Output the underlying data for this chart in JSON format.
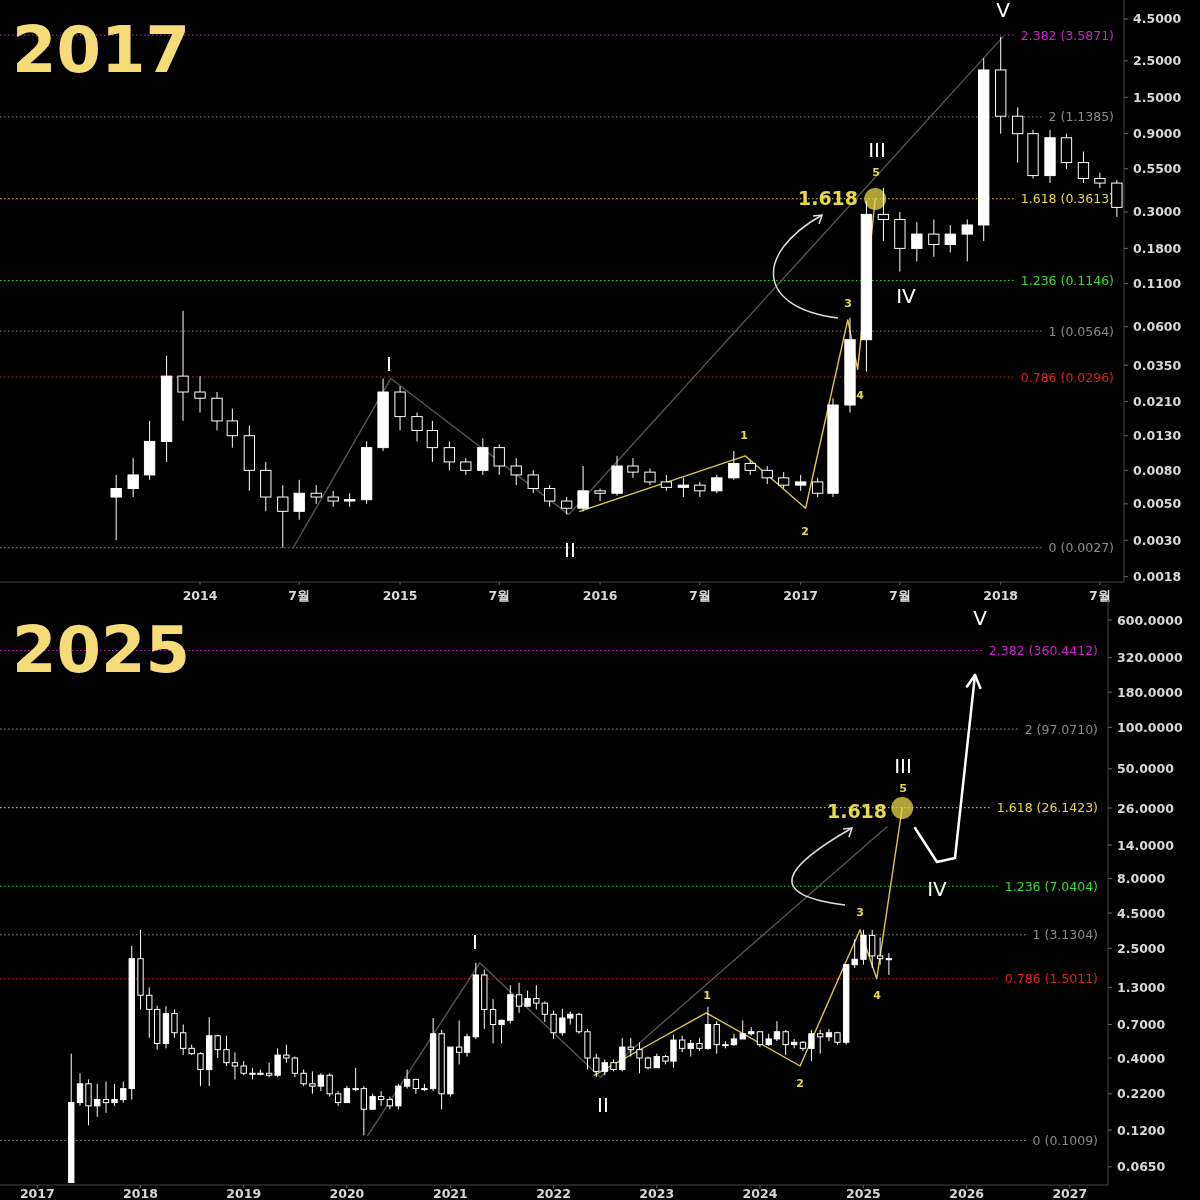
{
  "chart_data": [
    {
      "type": "candlestick",
      "title": "2017",
      "xlim": [
        "2013-01-01",
        "2018-08-14"
      ],
      "ylim": [
        0.00167,
        5.87
      ],
      "log": true,
      "xticks": [
        {
          "value": "2014-01-01",
          "label": "2014"
        },
        {
          "value": "2014-07-01",
          "label": "7월"
        },
        {
          "value": "2015-01-01",
          "label": "2015"
        },
        {
          "value": "2015-07-01",
          "label": "7월"
        },
        {
          "value": "2016-01-01",
          "label": "2016"
        },
        {
          "value": "2016-07-01",
          "label": "7월"
        },
        {
          "value": "2017-01-01",
          "label": "2017"
        },
        {
          "value": "2017-07-01",
          "label": "7월"
        },
        {
          "value": "2018-01-01",
          "label": "2018"
        },
        {
          "value": "2018-07-01",
          "label": "7월"
        }
      ],
      "yticks": [
        {
          "value": 4.5,
          "label": "4.5000"
        },
        {
          "value": 2.5,
          "label": "2.5000"
        },
        {
          "value": 1.5,
          "label": "1.5000"
        },
        {
          "value": 0.9,
          "label": "0.9000"
        },
        {
          "value": 0.55,
          "label": "0.5500"
        },
        {
          "value": 0.3,
          "label": "0.3000"
        },
        {
          "value": 0.18,
          "label": "0.1800"
        },
        {
          "value": 0.11,
          "label": "0.1100"
        },
        {
          "value": 0.06,
          "label": "0.0600"
        },
        {
          "value": 0.035,
          "label": "0.0350"
        },
        {
          "value": 0.021,
          "label": "0.0210"
        },
        {
          "value": 0.013,
          "label": "0.0130"
        },
        {
          "value": 0.008,
          "label": "0.0080"
        },
        {
          "value": 0.005,
          "label": "0.0050"
        },
        {
          "value": 0.003,
          "label": "0.0030"
        },
        {
          "value": 0.0018,
          "label": "0.0018"
        }
      ],
      "series": [
        {
          "type": "line",
          "color": "#555555",
          "x": [
            "2014-06-20",
            "2014-12-15",
            "2015-11-05",
            "2018-01-05"
          ],
          "values": [
            0.0027,
            0.029,
            0.0043,
            3.5
          ]
        },
        {
          "type": "line",
          "color": "#d8c84a",
          "x": [
            "2015-11-25",
            "2016-09-22",
            "2017-01-10",
            "2017-03-28",
            "2017-04-15",
            "2017-05-17"
          ],
          "values": [
            0.0045,
            0.0098,
            0.0047,
            0.066,
            0.033,
            0.36
          ]
        },
        {
          "type": "scatter",
          "color": "#e6d84a",
          "x": [
            "2017-05-17"
          ],
          "values": [
            0.36
          ]
        }
      ],
      "x": [
        "2013-08",
        "2013-09",
        "2013-10",
        "2013-11",
        "2013-12",
        "2014-01",
        "2014-02",
        "2014-03",
        "2014-04",
        "2014-05",
        "2014-06",
        "2014-07",
        "2014-08",
        "2014-09",
        "2014-10",
        "2014-11",
        "2014-12",
        "2015-01",
        "2015-02",
        "2015-03",
        "2015-04",
        "2015-05",
        "2015-06",
        "2015-07",
        "2015-08",
        "2015-09",
        "2015-10",
        "2015-11",
        "2015-12",
        "2016-01",
        "2016-02",
        "2016-03",
        "2016-04",
        "2016-05",
        "2016-06",
        "2016-07",
        "2016-08",
        "2016-09",
        "2016-10",
        "2016-11",
        "2016-12",
        "2017-01",
        "2017-02",
        "2017-03",
        "2017-04",
        "2017-05",
        "2017-06",
        "2017-07",
        "2017-08",
        "2017-09",
        "2017-10",
        "2017-11",
        "2017-12",
        "2018-01",
        "2018-02",
        "2018-03",
        "2018-04",
        "2018-05",
        "2018-06",
        "2018-07",
        "2018-08"
      ],
      "ohlc": [
        [
          0.0055,
          0.0075,
          0.003,
          0.0062
        ],
        [
          0.0062,
          0.0095,
          0.0055,
          0.0075
        ],
        [
          0.0075,
          0.016,
          0.007,
          0.012
        ],
        [
          0.012,
          0.04,
          0.009,
          0.03
        ],
        [
          0.03,
          0.075,
          0.016,
          0.024
        ],
        [
          0.024,
          0.03,
          0.018,
          0.022
        ],
        [
          0.022,
          0.024,
          0.014,
          0.016
        ],
        [
          0.016,
          0.019,
          0.011,
          0.013
        ],
        [
          0.013,
          0.015,
          0.006,
          0.008
        ],
        [
          0.008,
          0.009,
          0.0045,
          0.0055
        ],
        [
          0.0055,
          0.0065,
          0.0027,
          0.0045
        ],
        [
          0.0045,
          0.007,
          0.004,
          0.0058
        ],
        [
          0.0058,
          0.0065,
          0.005,
          0.0055
        ],
        [
          0.0055,
          0.006,
          0.0048,
          0.0052
        ],
        [
          0.0052,
          0.0058,
          0.0048,
          0.0053
        ],
        [
          0.0053,
          0.012,
          0.005,
          0.011
        ],
        [
          0.011,
          0.029,
          0.0105,
          0.024
        ],
        [
          0.024,
          0.026,
          0.014,
          0.017
        ],
        [
          0.017,
          0.018,
          0.012,
          0.014
        ],
        [
          0.014,
          0.016,
          0.009,
          0.011
        ],
        [
          0.011,
          0.012,
          0.008,
          0.009
        ],
        [
          0.009,
          0.0095,
          0.0075,
          0.008
        ],
        [
          0.008,
          0.0125,
          0.0075,
          0.011
        ],
        [
          0.011,
          0.0115,
          0.0075,
          0.0085
        ],
        [
          0.0085,
          0.0095,
          0.0065,
          0.0075
        ],
        [
          0.0075,
          0.008,
          0.0058,
          0.0062
        ],
        [
          0.0062,
          0.0065,
          0.0048,
          0.0052
        ],
        [
          0.0052,
          0.0055,
          0.0043,
          0.0047
        ],
        [
          0.0047,
          0.0085,
          0.0045,
          0.006
        ],
        [
          0.006,
          0.0062,
          0.0052,
          0.0058
        ],
        [
          0.0058,
          0.0098,
          0.0056,
          0.0085
        ],
        [
          0.0085,
          0.0095,
          0.0072,
          0.0078
        ],
        [
          0.0078,
          0.0082,
          0.0065,
          0.0068
        ],
        [
          0.0068,
          0.0075,
          0.006,
          0.0063
        ],
        [
          0.0063,
          0.0072,
          0.0055,
          0.0065
        ],
        [
          0.0065,
          0.0068,
          0.0055,
          0.006
        ],
        [
          0.006,
          0.0075,
          0.0058,
          0.0072
        ],
        [
          0.0072,
          0.0105,
          0.007,
          0.0088
        ],
        [
          0.0088,
          0.0092,
          0.0075,
          0.008
        ],
        [
          0.008,
          0.0085,
          0.0066,
          0.0072
        ],
        [
          0.0072,
          0.0078,
          0.0062,
          0.0065
        ],
        [
          0.0065,
          0.0075,
          0.006,
          0.0068
        ],
        [
          0.0068,
          0.0072,
          0.0055,
          0.0058
        ],
        [
          0.0058,
          0.022,
          0.0055,
          0.02
        ],
        [
          0.02,
          0.068,
          0.018,
          0.05
        ],
        [
          0.05,
          0.35,
          0.032,
          0.29
        ],
        [
          0.29,
          0.42,
          0.2,
          0.27
        ],
        [
          0.27,
          0.3,
          0.13,
          0.18
        ],
        [
          0.18,
          0.26,
          0.15,
          0.22
        ],
        [
          0.22,
          0.27,
          0.16,
          0.19
        ],
        [
          0.19,
          0.25,
          0.17,
          0.22
        ],
        [
          0.22,
          0.27,
          0.15,
          0.25
        ],
        [
          0.25,
          2.6,
          0.2,
          2.2
        ],
        [
          2.2,
          3.5,
          0.9,
          1.15
        ],
        [
          1.15,
          1.3,
          0.6,
          0.9
        ],
        [
          0.9,
          0.95,
          0.48,
          0.5
        ],
        [
          0.5,
          0.95,
          0.45,
          0.85
        ],
        [
          0.85,
          0.9,
          0.55,
          0.6
        ],
        [
          0.6,
          0.7,
          0.45,
          0.48
        ],
        [
          0.48,
          0.52,
          0.42,
          0.45
        ],
        [
          0.45,
          0.47,
          0.28,
          0.32
        ]
      ],
      "ref_lines": [
        {
          "axis": "y",
          "value": 3.5871,
          "label": "2.382 (3.5871)",
          "color": "#d020d0",
          "line_style": "dotted"
        },
        {
          "axis": "y",
          "value": 1.1385,
          "label": "2 (1.1385)",
          "color": "#8a8a8a",
          "line_style": "dotted"
        },
        {
          "axis": "y",
          "value": 0.3613,
          "label": "1.618 (0.3613)",
          "color": "#e6d84a",
          "line_style": "dotted"
        },
        {
          "axis": "y",
          "value": 0.1146,
          "label": "1.236 (0.1146)",
          "color": "#33dd33",
          "line_style": "dotted"
        },
        {
          "axis": "y",
          "value": 0.0564,
          "label": "1 (0.0564)",
          "color": "#8a8a8a",
          "line_style": "dotted"
        },
        {
          "axis": "y",
          "value": 0.0296,
          "label": "0.786 (0.0296)",
          "color": "#dd2222",
          "line_style": "dotted"
        },
        {
          "axis": "y",
          "value": 0.0027,
          "label": "0 (0.0027)",
          "color": "#8a8a8a",
          "line_style": "dotted"
        }
      ],
      "annotations": [
        "V",
        "III",
        "5",
        "1.618",
        "IV",
        "3",
        "4",
        "I",
        "1",
        "2",
        "II"
      ]
    },
    {
      "type": "candlestick",
      "title": "2025",
      "xlim": [
        "2016-08-22",
        "2027-05-16"
      ],
      "ylim": [
        0.048,
        838
      ],
      "log": true,
      "xticks": [
        {
          "value": "2017-01-01",
          "label": "2017"
        },
        {
          "value": "2018-01-01",
          "label": "2018"
        },
        {
          "value": "2019-01-01",
          "label": "2019"
        },
        {
          "value": "2020-01-01",
          "label": "2020"
        },
        {
          "value": "2021-01-01",
          "label": "2021"
        },
        {
          "value": "2022-01-01",
          "label": "2022"
        },
        {
          "value": "2023-01-01",
          "label": "2023"
        },
        {
          "value": "2024-01-01",
          "label": "2024"
        },
        {
          "value": "2025-01-01",
          "label": "2025"
        },
        {
          "value": "2026-01-01",
          "label": "2026"
        },
        {
          "value": "2027-01-01",
          "label": "2027"
        }
      ],
      "yticks": [
        {
          "value": 600,
          "label": "600.0000"
        },
        {
          "value": 320,
          "label": "320.0000"
        },
        {
          "value": 180,
          "label": "180.0000"
        },
        {
          "value": 100,
          "label": "100.0000"
        },
        {
          "value": 50,
          "label": "50.0000"
        },
        {
          "value": 26,
          "label": "26.0000"
        },
        {
          "value": 14,
          "label": "14.0000"
        },
        {
          "value": 8,
          "label": "8.0000"
        },
        {
          "value": 4.5,
          "label": "4.5000"
        },
        {
          "value": 2.5,
          "label": "2.5000"
        },
        {
          "value": 1.3,
          "label": "1.3000"
        },
        {
          "value": 0.7,
          "label": "0.7000"
        },
        {
          "value": 0.4,
          "label": "0.4000"
        },
        {
          "value": 0.22,
          "label": "0.2200"
        },
        {
          "value": 0.12,
          "label": "0.1200"
        },
        {
          "value": 0.065,
          "label": "0.0650"
        }
      ],
      "series": [
        {
          "type": "line",
          "color": "#555555",
          "x": [
            "2020-03-15",
            "2021-04-15",
            "2022-06-15",
            "2025-03-25"
          ],
          "values": [
            0.11,
            1.96,
            0.29,
            19
          ]
        },
        {
          "type": "line",
          "color": "#d8c84a",
          "x": [
            "2022-05-25",
            "2023-06-25",
            "2024-05-22",
            "2024-12-20",
            "2025-02-17",
            "2025-05-18"
          ],
          "values": [
            0.3,
            0.85,
            0.35,
            3.4,
            1.5,
            26
          ]
        },
        {
          "type": "scatter",
          "color": "#e6d84a",
          "x": [
            "2025-05-18"
          ],
          "values": [
            26
          ]
        }
      ],
      "x": [
        "2017-05",
        "2017-06",
        "2017-07",
        "2017-08",
        "2017-09",
        "2017-10",
        "2017-11",
        "2017-12",
        "2018-01",
        "2018-02",
        "2018-03",
        "2018-04",
        "2018-05",
        "2018-06",
        "2018-07",
        "2018-08",
        "2018-09",
        "2018-10",
        "2018-11",
        "2018-12",
        "2019-01",
        "2019-02",
        "2019-03",
        "2019-04",
        "2019-05",
        "2019-06",
        "2019-07",
        "2019-08",
        "2019-09",
        "2019-10",
        "2019-11",
        "2019-12",
        "2020-01",
        "2020-02",
        "2020-03",
        "2020-04",
        "2020-05",
        "2020-06",
        "2020-07",
        "2020-08",
        "2020-09",
        "2020-10",
        "2020-11",
        "2020-12",
        "2021-01",
        "2021-02",
        "2021-03",
        "2021-04",
        "2021-05",
        "2021-06",
        "2021-07",
        "2021-08",
        "2021-09",
        "2021-10",
        "2021-11",
        "2021-12",
        "2022-01",
        "2022-02",
        "2022-03",
        "2022-04",
        "2022-05",
        "2022-06",
        "2022-07",
        "2022-08",
        "2022-09",
        "2022-10",
        "2022-11",
        "2022-12",
        "2023-01",
        "2023-02",
        "2023-03",
        "2023-04",
        "2023-05",
        "2023-06",
        "2023-07",
        "2023-08",
        "2023-09",
        "2023-10",
        "2023-11",
        "2023-12",
        "2024-01",
        "2024-02",
        "2024-03",
        "2024-04",
        "2024-05",
        "2024-06",
        "2024-07",
        "2024-08",
        "2024-09",
        "2024-10",
        "2024-11",
        "2024-12",
        "2025-01",
        "2025-02",
        "2025-03",
        "2025-04"
      ],
      "ohlc": [
        [
          0.05,
          0.43,
          0.05,
          0.19
        ],
        [
          0.19,
          0.31,
          0.18,
          0.26
        ],
        [
          0.26,
          0.28,
          0.13,
          0.18
        ],
        [
          0.18,
          0.26,
          0.15,
          0.2
        ],
        [
          0.2,
          0.27,
          0.16,
          0.19
        ],
        [
          0.19,
          0.26,
          0.18,
          0.2
        ],
        [
          0.2,
          0.27,
          0.19,
          0.24
        ],
        [
          0.24,
          2.6,
          0.2,
          2.1
        ],
        [
          2.1,
          3.4,
          0.9,
          1.14
        ],
        [
          1.14,
          1.3,
          0.56,
          0.9
        ],
        [
          0.9,
          0.96,
          0.46,
          0.51
        ],
        [
          0.51,
          0.95,
          0.47,
          0.84
        ],
        [
          0.84,
          0.9,
          0.56,
          0.61
        ],
        [
          0.61,
          0.7,
          0.42,
          0.47
        ],
        [
          0.47,
          0.5,
          0.42,
          0.43
        ],
        [
          0.43,
          0.44,
          0.25,
          0.33
        ],
        [
          0.33,
          0.79,
          0.25,
          0.58
        ],
        [
          0.58,
          0.59,
          0.4,
          0.46
        ],
        [
          0.46,
          0.58,
          0.35,
          0.37
        ],
        [
          0.37,
          0.44,
          0.28,
          0.35
        ],
        [
          0.35,
          0.38,
          0.3,
          0.31
        ],
        [
          0.31,
          0.34,
          0.28,
          0.31
        ],
        [
          0.31,
          0.33,
          0.3,
          0.31
        ],
        [
          0.31,
          0.37,
          0.29,
          0.3
        ],
        [
          0.3,
          0.47,
          0.29,
          0.42
        ],
        [
          0.42,
          0.5,
          0.37,
          0.4
        ],
        [
          0.4,
          0.41,
          0.29,
          0.31
        ],
        [
          0.31,
          0.33,
          0.25,
          0.26
        ],
        [
          0.26,
          0.32,
          0.22,
          0.25
        ],
        [
          0.25,
          0.31,
          0.23,
          0.3
        ],
        [
          0.3,
          0.31,
          0.21,
          0.22
        ],
        [
          0.22,
          0.23,
          0.18,
          0.19
        ],
        [
          0.19,
          0.25,
          0.19,
          0.24
        ],
        [
          0.24,
          0.34,
          0.23,
          0.24
        ],
        [
          0.24,
          0.25,
          0.11,
          0.17
        ],
        [
          0.17,
          0.22,
          0.17,
          0.21
        ],
        [
          0.21,
          0.23,
          0.18,
          0.2
        ],
        [
          0.2,
          0.21,
          0.17,
          0.18
        ],
        [
          0.18,
          0.26,
          0.17,
          0.25
        ],
        [
          0.25,
          0.33,
          0.24,
          0.28
        ],
        [
          0.28,
          0.28,
          0.22,
          0.24
        ],
        [
          0.24,
          0.26,
          0.23,
          0.24
        ],
        [
          0.24,
          0.78,
          0.23,
          0.6
        ],
        [
          0.6,
          0.64,
          0.17,
          0.22
        ],
        [
          0.22,
          0.48,
          0.21,
          0.48
        ],
        [
          0.48,
          0.75,
          0.36,
          0.44
        ],
        [
          0.44,
          0.6,
          0.41,
          0.57
        ],
        [
          0.57,
          1.96,
          0.55,
          1.6
        ],
        [
          1.6,
          1.75,
          0.65,
          0.9
        ],
        [
          0.9,
          1.07,
          0.51,
          0.7
        ],
        [
          0.7,
          0.76,
          0.51,
          0.75
        ],
        [
          0.75,
          1.35,
          0.71,
          1.15
        ],
        [
          1.15,
          1.41,
          0.85,
          0.95
        ],
        [
          0.95,
          1.23,
          0.94,
          1.08
        ],
        [
          1.08,
          1.35,
          0.9,
          1.0
        ],
        [
          1.0,
          1.03,
          0.73,
          0.83
        ],
        [
          0.83,
          0.88,
          0.55,
          0.61
        ],
        [
          0.61,
          0.91,
          0.58,
          0.78
        ],
        [
          0.78,
          0.87,
          0.7,
          0.83
        ],
        [
          0.83,
          0.85,
          0.6,
          0.62
        ],
        [
          0.62,
          0.65,
          0.33,
          0.4
        ],
        [
          0.4,
          0.43,
          0.29,
          0.32
        ],
        [
          0.32,
          0.39,
          0.3,
          0.37
        ],
        [
          0.37,
          0.39,
          0.32,
          0.33
        ],
        [
          0.33,
          0.56,
          0.32,
          0.48
        ],
        [
          0.48,
          0.56,
          0.41,
          0.46
        ],
        [
          0.46,
          0.52,
          0.31,
          0.4
        ],
        [
          0.4,
          0.41,
          0.33,
          0.34
        ],
        [
          0.34,
          0.43,
          0.34,
          0.41
        ],
        [
          0.41,
          0.42,
          0.36,
          0.38
        ],
        [
          0.38,
          0.59,
          0.34,
          0.54
        ],
        [
          0.54,
          0.58,
          0.44,
          0.47
        ],
        [
          0.47,
          0.54,
          0.41,
          0.51
        ],
        [
          0.51,
          0.56,
          0.45,
          0.47
        ],
        [
          0.47,
          0.94,
          0.46,
          0.7
        ],
        [
          0.7,
          0.74,
          0.43,
          0.5
        ],
        [
          0.5,
          0.53,
          0.47,
          0.5
        ],
        [
          0.5,
          0.6,
          0.49,
          0.55
        ],
        [
          0.55,
          0.75,
          0.55,
          0.6
        ],
        [
          0.6,
          0.67,
          0.58,
          0.62
        ],
        [
          0.62,
          0.63,
          0.48,
          0.5
        ],
        [
          0.5,
          0.6,
          0.49,
          0.55
        ],
        [
          0.55,
          0.74,
          0.53,
          0.62
        ],
        [
          0.62,
          0.64,
          0.42,
          0.5
        ],
        [
          0.5,
          0.55,
          0.47,
          0.52
        ],
        [
          0.52,
          0.53,
          0.45,
          0.47
        ],
        [
          0.47,
          0.64,
          0.38,
          0.6
        ],
        [
          0.6,
          0.64,
          0.43,
          0.57
        ],
        [
          0.57,
          0.65,
          0.53,
          0.61
        ],
        [
          0.61,
          0.62,
          0.5,
          0.52
        ],
        [
          0.52,
          1.9,
          0.5,
          1.9
        ],
        [
          1.9,
          2.9,
          1.8,
          2.08
        ],
        [
          2.08,
          3.4,
          1.9,
          3.1
        ],
        [
          3.1,
          3.4,
          1.8,
          2.2
        ],
        [
          2.2,
          3.0,
          1.9,
          2.1
        ],
        [
          2.1,
          2.3,
          1.6,
          2.1
        ]
      ],
      "ref_lines": [
        {
          "axis": "y",
          "value": 360.4412,
          "label": "2.382 (360.4412)",
          "color": "#d020d0",
          "line_style": "dotted"
        },
        {
          "axis": "y",
          "value": 97.071,
          "label": "2 (97.0710)",
          "color": "#8a8a8a",
          "line_style": "dotted"
        },
        {
          "axis": "y",
          "value": 26.1423,
          "label": "1.618 (26.1423)",
          "color": "#e6d84a",
          "line_style": "dotted"
        },
        {
          "axis": "y",
          "value": 7.0404,
          "label": "1.236 (7.0404)",
          "color": "#33dd33",
          "line_style": "dotted"
        },
        {
          "axis": "y",
          "value": 3.1304,
          "label": "1 (3.1304)",
          "color": "#8a8a8a",
          "line_style": "dotted"
        },
        {
          "axis": "y",
          "value": 1.5011,
          "label": "0.786 (1.5011)",
          "color": "#dd2222",
          "line_style": "dotted"
        },
        {
          "axis": "y",
          "value": 0.1009,
          "label": "0 (0.1009)",
          "color": "#8a8a8a",
          "line_style": "dotted"
        }
      ],
      "annotations": [
        "V",
        "III",
        "5",
        "1.618",
        "IV",
        "3",
        "4",
        "I",
        "1",
        "2",
        "II"
      ]
    }
  ]
}
